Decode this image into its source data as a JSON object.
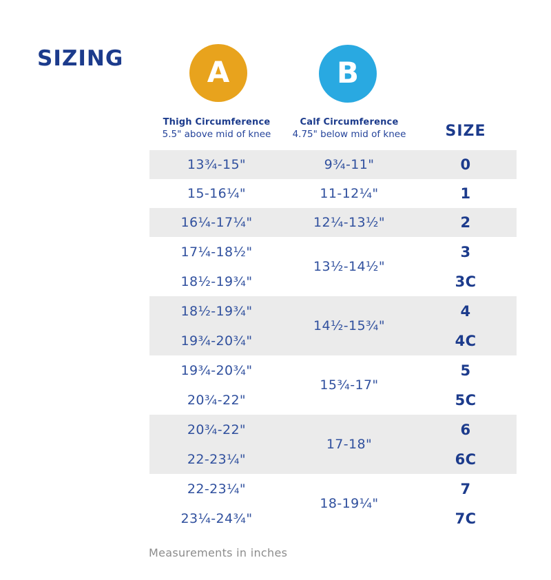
{
  "header": {
    "title": "SIZING",
    "markers": [
      {
        "name": "A",
        "letter": "A",
        "color": "#E8A31D"
      },
      {
        "name": "B",
        "letter": "B",
        "color": "#29A9E1"
      }
    ]
  },
  "table": {
    "columns": [
      {
        "title": "Thigh Circumference",
        "subtitle": "5.5\" above mid of knee"
      },
      {
        "title": "Calf Circumference",
        "subtitle": "4.75\" below mid of knee"
      },
      {
        "title": "SIZE",
        "subtitle": ""
      }
    ],
    "groups": [
      {
        "calf": "9¾-11\"",
        "rows": [
          {
            "thigh": "13¾-15\"",
            "size": "0"
          }
        ]
      },
      {
        "calf": "11-12¼\"",
        "rows": [
          {
            "thigh": "15-16¼\"",
            "size": "1"
          }
        ]
      },
      {
        "calf": "12¼-13½\"",
        "rows": [
          {
            "thigh": "16¼-17¼\"",
            "size": "2"
          }
        ]
      },
      {
        "calf": "13½-14½\"",
        "rows": [
          {
            "thigh": "17¼-18½\"",
            "size": "3"
          },
          {
            "thigh": "18½-19¾\"",
            "size": "3C"
          }
        ]
      },
      {
        "calf": "14½-15¾\"",
        "rows": [
          {
            "thigh": "18½-19¾\"",
            "size": "4"
          },
          {
            "thigh": "19¾-20¾\"",
            "size": "4C"
          }
        ]
      },
      {
        "calf": "15¾-17\"",
        "rows": [
          {
            "thigh": "19¾-20¾\"",
            "size": "5"
          },
          {
            "thigh": "20¾-22\"",
            "size": "5C"
          }
        ]
      },
      {
        "calf": "17-18\"",
        "rows": [
          {
            "thigh": "20¾-22\"",
            "size": "6"
          },
          {
            "thigh": "22-23¼\"",
            "size": "6C"
          }
        ]
      },
      {
        "calf": "18-19¼\"",
        "rows": [
          {
            "thigh": "22-23¼\"",
            "size": "7"
          },
          {
            "thigh": "23¼-24¾\"",
            "size": "7C"
          }
        ]
      }
    ]
  },
  "footer": {
    "note": "Measurements in inches"
  },
  "colors": {
    "accent_navy": "#1C3B8C",
    "measurement_blue": "#30509E",
    "row_shade_gray": "#EBEBEB",
    "marker_a_amber": "#E8A31D",
    "marker_b_cyan": "#29A9E1",
    "footnote_gray": "#8C8C8C"
  },
  "chart_data": {
    "type": "table",
    "title": "SIZING",
    "columns": [
      "Thigh Circumference 5.5\" above mid of knee",
      "Calf Circumference 4.75\" below mid of knee",
      "SIZE"
    ],
    "rows": [
      [
        "13¾-15\"",
        "9¾-11\"",
        "0"
      ],
      [
        "15-16¼\"",
        "11-12¼\"",
        "1"
      ],
      [
        "16¼-17¼\"",
        "12¼-13½\"",
        "2"
      ],
      [
        "17¼-18½\"",
        "13½-14½\"",
        "3"
      ],
      [
        "18½-19¾\"",
        "13½-14½\"",
        "3C"
      ],
      [
        "18½-19¾\"",
        "14½-15¾\"",
        "4"
      ],
      [
        "19¾-20¾\"",
        "14½-15¾\"",
        "4C"
      ],
      [
        "19¾-20¾\"",
        "15¾-17\"",
        "5"
      ],
      [
        "20¾-22\"",
        "15¾-17\"",
        "5C"
      ],
      [
        "20¾-22\"",
        "17-18\"",
        "6"
      ],
      [
        "22-23¼\"",
        "17-18\"",
        "6C"
      ],
      [
        "22-23¼\"",
        "18-19¼\"",
        "7"
      ],
      [
        "23¼-24¾\"",
        "18-19¼\"",
        "7C"
      ]
    ],
    "footnote": "Measurements in inches",
    "layout": {
      "merged_calf_pairs": [
        "3/3C",
        "4/4C",
        "5/5C",
        "6/6C",
        "7/7C"
      ],
      "shaded_row_groups": [
        0,
        2,
        4,
        6
      ]
    }
  }
}
